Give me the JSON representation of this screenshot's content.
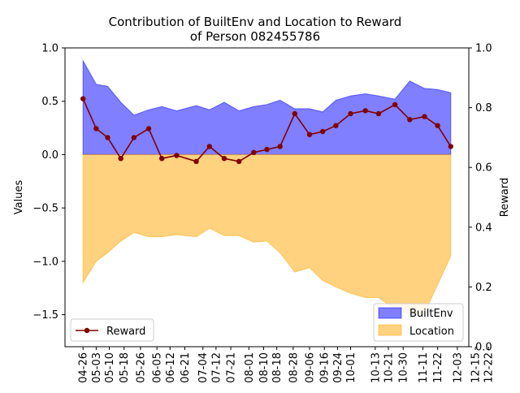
{
  "chart_data": {
    "type": "area",
    "title_line1": "Contribution of BuiltEnv and Location to Reward",
    "title_line2": "of Person 082455786",
    "ylabel_left": "Values",
    "ylabel_right": "Reward",
    "ylim_left": [
      -1.8,
      1.0
    ],
    "ylim_right": [
      0.0,
      1.0
    ],
    "yticks_left": [
      "1.0",
      "0.5",
      "0.0",
      "−0.5",
      "−1.0",
      "−1.5"
    ],
    "yticks_left_values": [
      1.0,
      0.5,
      0.0,
      -0.5,
      -1.0,
      -1.5
    ],
    "yticks_right": [
      "1.0",
      "0.8",
      "0.6",
      "0.4",
      "0.2",
      "0.0"
    ],
    "yticks_right_values": [
      1.0,
      0.8,
      0.6,
      0.4,
      0.2,
      0.0
    ],
    "x": [
      "04-26",
      "05-03",
      "05-10",
      "05-18",
      "05-26",
      "06-05",
      "06-12",
      "06-21",
      "07-04",
      "07-12",
      "07-21",
      "08-01",
      "08-10",
      "08-18",
      "08-28",
      "09-06",
      "09-16",
      "09-24",
      "10-01",
      "10-13",
      "10-21",
      "10-30",
      "11-11",
      "11-22",
      "12-03",
      "12-15",
      "12-22"
    ],
    "xtick_labels": [
      "04-26",
      "05-03",
      "05-10",
      "05-18",
      "05-26",
      "06-05",
      "06-12",
      "06-21",
      "07-04",
      "07-12",
      "07-21",
      "08-01",
      "08-10",
      "08-18",
      "08-28",
      "09-06",
      "09-16",
      "09-24",
      "10-01",
      "10-13",
      "10-21",
      "10-30",
      "11-11",
      "11-22",
      "12-03",
      "12-15",
      "12-22"
    ],
    "xtick_positions": [
      0,
      0.8,
      1.6,
      2.5,
      3.5,
      4.5,
      5.3,
      6.2,
      7.3,
      8.1,
      9.0,
      10.1,
      11.0,
      11.8,
      12.8,
      13.8,
      14.7,
      15.5,
      16.3,
      17.8,
      18.6,
      19.5,
      20.7,
      21.6,
      22.8,
      23.9,
      24.7
    ],
    "x_positions": [
      0,
      0.8,
      1.5,
      2.3,
      3.1,
      4.0,
      4.8,
      5.7,
      6.9,
      7.7,
      8.6,
      9.5,
      10.4,
      11.2,
      12.0,
      12.9,
      13.8,
      14.6,
      15.4,
      16.3,
      17.2,
      18.0,
      19.0,
      19.9,
      20.8,
      21.6,
      22.4
    ],
    "series": [
      {
        "name": "BuiltEnv",
        "kind": "area",
        "color": "#0000ff",
        "values": [
          0.88,
          0.66,
          0.64,
          0.49,
          0.37,
          0.42,
          0.45,
          0.41,
          0.46,
          0.42,
          0.49,
          0.41,
          0.45,
          0.47,
          0.51,
          0.43,
          0.43,
          0.4,
          0.51,
          0.55,
          0.57,
          0.55,
          0.52,
          0.69,
          0.62,
          0.61,
          0.58
        ]
      },
      {
        "name": "Location",
        "kind": "area",
        "color": "#ffa500",
        "values": [
          -1.2,
          -1.0,
          -0.92,
          -0.81,
          -0.73,
          -0.77,
          -0.77,
          -0.75,
          -0.77,
          -0.69,
          -0.76,
          -0.76,
          -0.82,
          -0.81,
          -0.92,
          -1.1,
          -1.06,
          -1.18,
          -1.24,
          -1.3,
          -1.34,
          -1.34,
          -1.45,
          -1.49,
          -1.48,
          -1.22,
          -0.95
        ]
      },
      {
        "name": "Reward",
        "kind": "line",
        "axis": "right",
        "color": "#800000",
        "values": [
          0.83,
          0.73,
          0.7,
          0.63,
          0.7,
          0.73,
          0.63,
          0.64,
          0.62,
          0.67,
          0.63,
          0.62,
          0.65,
          0.66,
          0.67,
          0.78,
          0.71,
          0.72,
          0.74,
          0.78,
          0.79,
          0.78,
          0.81,
          0.76,
          0.77,
          0.74,
          0.67
        ]
      }
    ],
    "legend_left": {
      "placement": "lower-left",
      "label": "Reward"
    },
    "legend_right": {
      "placement": "lower-right",
      "labels": [
        "BuiltEnv",
        "Location"
      ]
    },
    "grid": false
  }
}
